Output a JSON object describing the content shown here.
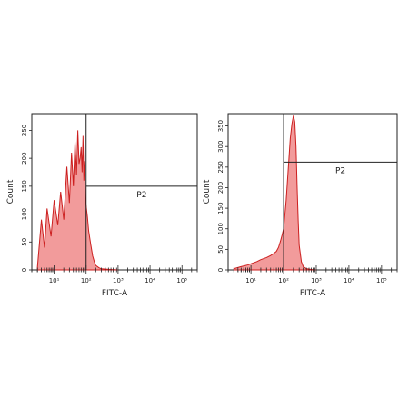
{
  "chart_data": [
    {
      "type": "area",
      "chart": "histogram",
      "xlabel": "FITC-A",
      "ylabel": "Count",
      "x_scale": "log",
      "xlim": [
        2,
        300000
      ],
      "x_ticks": [
        10,
        100,
        1000,
        10000,
        100000
      ],
      "x_tick_labels": [
        "10¹",
        "10²",
        "10³",
        "10⁴",
        "10⁵"
      ],
      "ylim": [
        0,
        280
      ],
      "y_ticks": [
        0,
        50,
        100,
        150,
        200,
        250
      ],
      "fill_color": "#f08a8a",
      "line_color": "#cc1f1f",
      "gate": {
        "label": "P2",
        "x_start": 100,
        "level": 150
      },
      "x": [
        3,
        4,
        5,
        6,
        8,
        10,
        13,
        16,
        20,
        25,
        30,
        35,
        40,
        45,
        50,
        55,
        60,
        65,
        70,
        75,
        80,
        85,
        90,
        95,
        100,
        110,
        120,
        140,
        160,
        180,
        200,
        250,
        300,
        500,
        1000
      ],
      "y": [
        5,
        90,
        40,
        110,
        60,
        125,
        80,
        140,
        90,
        185,
        120,
        210,
        150,
        230,
        170,
        250,
        190,
        200,
        220,
        175,
        240,
        160,
        195,
        130,
        115,
        95,
        70,
        45,
        25,
        15,
        8,
        4,
        2,
        1,
        0
      ]
    },
    {
      "type": "area",
      "chart": "histogram",
      "xlabel": "FITC-A",
      "ylabel": "Count",
      "x_scale": "log",
      "xlim": [
        2,
        300000
      ],
      "x_ticks": [
        10,
        100,
        1000,
        10000,
        100000
      ],
      "x_tick_labels": [
        "10¹",
        "10²",
        "10³",
        "10⁴",
        "10⁵"
      ],
      "ylim": [
        0,
        380
      ],
      "y_ticks": [
        0,
        50,
        100,
        150,
        200,
        250,
        300,
        350
      ],
      "fill_color": "#f08a8a",
      "line_color": "#cc1f1f",
      "gate": {
        "label": "P2",
        "x_start": 100,
        "level": 262
      },
      "x": [
        3,
        5,
        8,
        10,
        15,
        20,
        30,
        40,
        50,
        60,
        70,
        80,
        90,
        100,
        120,
        140,
        160,
        180,
        200,
        220,
        240,
        260,
        280,
        300,
        350,
        400,
        500,
        700,
        1000
      ],
      "y": [
        3,
        8,
        12,
        15,
        20,
        25,
        30,
        35,
        40,
        45,
        55,
        70,
        85,
        100,
        170,
        250,
        320,
        355,
        375,
        360,
        300,
        200,
        120,
        60,
        20,
        8,
        3,
        1,
        0
      ]
    }
  ]
}
